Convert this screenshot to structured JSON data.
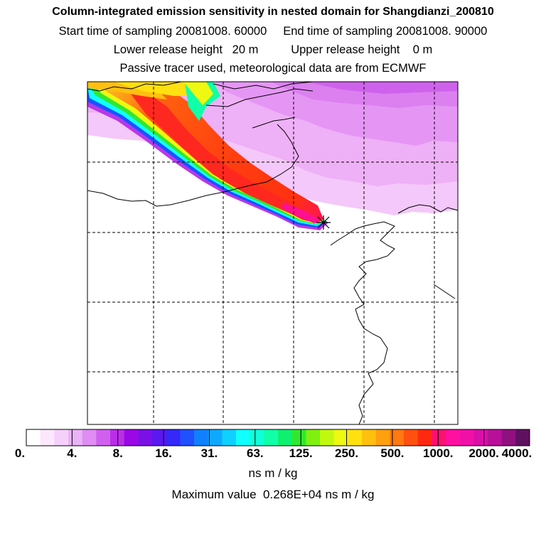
{
  "header": {
    "title": "Column-integrated emission sensitivity in nested domain for Shangdianzi_200810",
    "line2": "Start time of sampling 20081008. 60000     End time of sampling 20081008. 90000",
    "line3": "Lower release height   20 m          Upper release height    0 m",
    "line4": "Passive tracer used, meteorological data are from ECMWF"
  },
  "colorbar": {
    "labels": [
      "0.",
      "4.",
      "8.",
      "16.",
      "31.",
      "63.",
      "125.",
      "250.",
      "500.",
      "1000.",
      "2000.",
      "4000."
    ],
    "colors": [
      "#ffffff",
      "#fbe8fd",
      "#f5d0fb",
      "#eab2f7",
      "#df8cf3",
      "#d060ee",
      "#bb2ee9",
      "#9a08e6",
      "#7a10e6",
      "#5a18f0",
      "#3528f8",
      "#2050ff",
      "#1080ff",
      "#10a8ff",
      "#10d0ff",
      "#10ffff",
      "#10ffd8",
      "#10ffa8",
      "#10f070",
      "#30e830",
      "#80f010",
      "#c0f810",
      "#eef810",
      "#ffe010",
      "#ffc010",
      "#ffa010",
      "#ff7810",
      "#ff5010",
      "#ff2810",
      "#ff1070",
      "#ff10a0",
      "#f010a8",
      "#d810a8",
      "#b81098",
      "#901080",
      "#601060"
    ],
    "units": "ns m / kg",
    "max_value_text": "Maximum value  0.268E+04 ns m / kg"
  },
  "map": {
    "release_site_marker": "asterisk-icon"
  }
}
